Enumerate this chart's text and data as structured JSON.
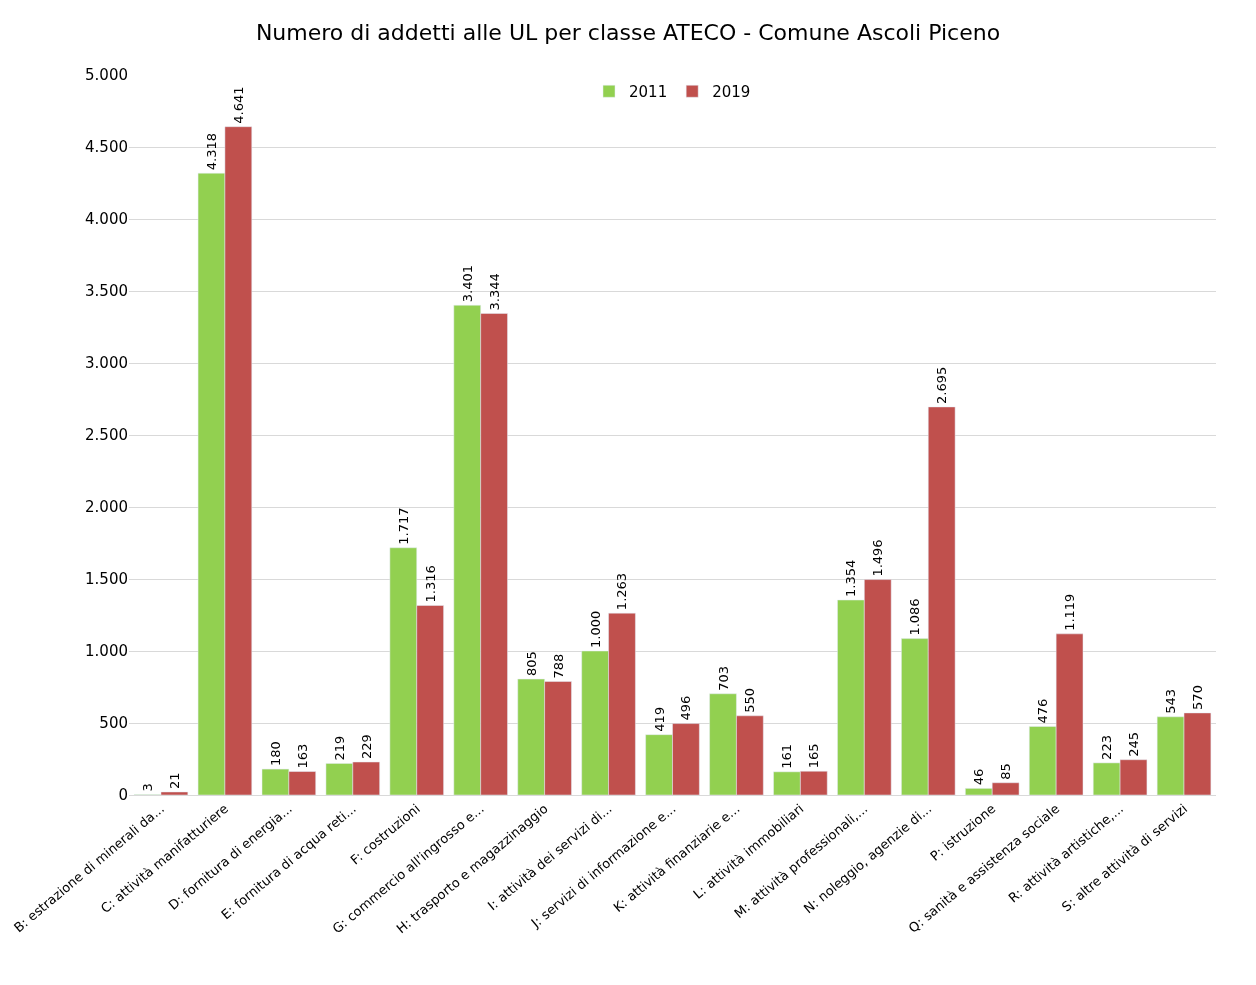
{
  "chart_data": {
    "type": "bar",
    "title": "Numero di addetti alle UL per classe ATECO - Comune Ascoli Piceno",
    "categories": [
      "B: estrazione di minerali da...",
      "C: attività manifatturiere",
      "D: fornitura di energia...",
      "E: fornitura di acqua reti...",
      "F: costruzioni",
      "G: commercio all'ingrosso e...",
      "H: trasporto e magazzinaggio",
      "I: attività dei servizi di...",
      "J: servizi di informazione e...",
      "K: attività finanziarie e...",
      "L: attività immobiliari",
      "M: attività professionali,...",
      "N: noleggio, agenzie di...",
      "P: istruzione",
      "Q: sanità e assistenza sociale",
      "R: attività artistiche,...",
      "S: altre attività di servizi"
    ],
    "series": [
      {
        "name": "2011",
        "color": "#92d050",
        "values": [
          3,
          4318,
          180,
          219,
          1717,
          3401,
          805,
          1000,
          419,
          703,
          161,
          1354,
          1086,
          46,
          476,
          223,
          543
        ],
        "value_labels": [
          "3",
          "4.318",
          "180",
          "219",
          "1.717",
          "3.401",
          "805",
          "1.000",
          "419",
          "703",
          "161",
          "1.354",
          "1.086",
          "46",
          "476",
          "223",
          "543"
        ]
      },
      {
        "name": "2019",
        "color": "#c0504d",
        "values": [
          21,
          4641,
          163,
          229,
          1316,
          3344,
          788,
          1263,
          496,
          550,
          165,
          1496,
          2695,
          85,
          1119,
          245,
          570
        ],
        "value_labels": [
          "21",
          "4.641",
          "163",
          "229",
          "1.316",
          "3.344",
          "788",
          "1.263",
          "496",
          "550",
          "165",
          "1.496",
          "2.695",
          "85",
          "1.119",
          "245",
          "570"
        ]
      }
    ],
    "ylim": [
      0,
      5000
    ],
    "yticks": [
      {
        "value": 0,
        "label": "0"
      },
      {
        "value": 500,
        "label": "500"
      },
      {
        "value": 1000,
        "label": "1.000"
      },
      {
        "value": 1500,
        "label": "1.500"
      },
      {
        "value": 2000,
        "label": "2.000"
      },
      {
        "value": 2500,
        "label": "2.500"
      },
      {
        "value": 3000,
        "label": "3.000"
      },
      {
        "value": 3500,
        "label": "3.500"
      },
      {
        "value": 4000,
        "label": "4.000"
      },
      {
        "value": 4500,
        "label": "4.500"
      },
      {
        "value": 5000,
        "label": "5.000"
      }
    ],
    "grid": "y",
    "legend": "top"
  }
}
